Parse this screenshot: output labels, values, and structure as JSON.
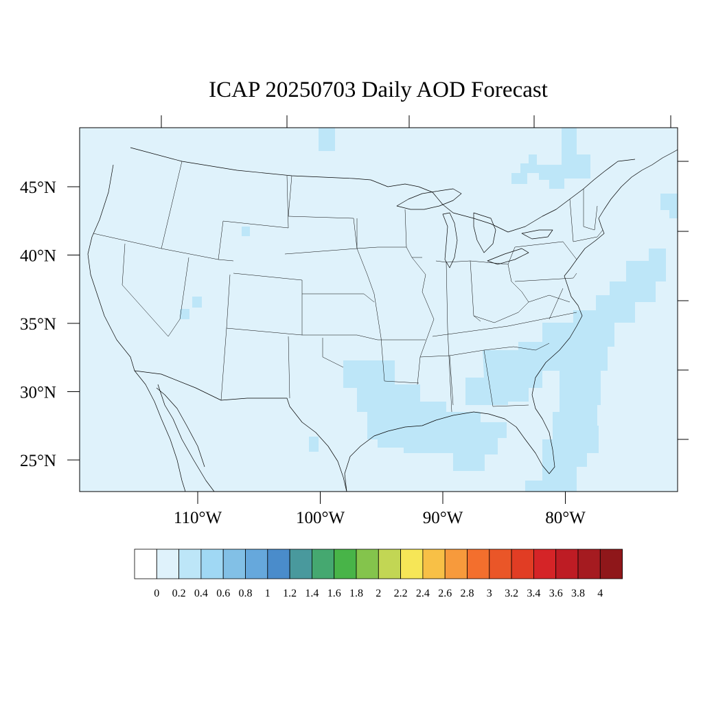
{
  "title": "ICAP 20250703 Daily AOD Forecast",
  "map": {
    "background_color": "#dff2fb",
    "border_color": "#000000",
    "lat_ticks": [
      {
        "value": 45,
        "label": "45°N"
      },
      {
        "value": 40,
        "label": "40°N"
      },
      {
        "value": 35,
        "label": "35°N"
      },
      {
        "value": 30,
        "label": "30°N"
      },
      {
        "value": 25,
        "label": "25°N"
      }
    ],
    "lon_ticks": [
      {
        "value": -110,
        "label": "110°W"
      },
      {
        "value": -100,
        "label": "100°W"
      },
      {
        "value": -90,
        "label": "90°W"
      },
      {
        "value": -80,
        "label": "80°W"
      }
    ]
  },
  "colorbar": {
    "colors": [
      "#ffffff",
      "#dff2fb",
      "#bde6f8",
      "#a0d8f4",
      "#82c0e6",
      "#66a8dc",
      "#4a8ccb",
      "#49999d",
      "#45a870",
      "#48b448",
      "#84c44c",
      "#c2d654",
      "#f6e657",
      "#f8c046",
      "#f79a3c",
      "#f36f2d",
      "#ea5628",
      "#e13d24",
      "#d52427",
      "#be1c24",
      "#a51b20",
      "#8f171a"
    ],
    "labels": [
      "0",
      "0.2",
      "0.4",
      "0.6",
      "0.8",
      "1",
      "1.2",
      "1.4",
      "1.6",
      "1.8",
      "2",
      "2.2",
      "2.4",
      "2.6",
      "2.8",
      "3",
      "3.2",
      "3.4",
      "3.6",
      "3.8",
      "4"
    ]
  }
}
